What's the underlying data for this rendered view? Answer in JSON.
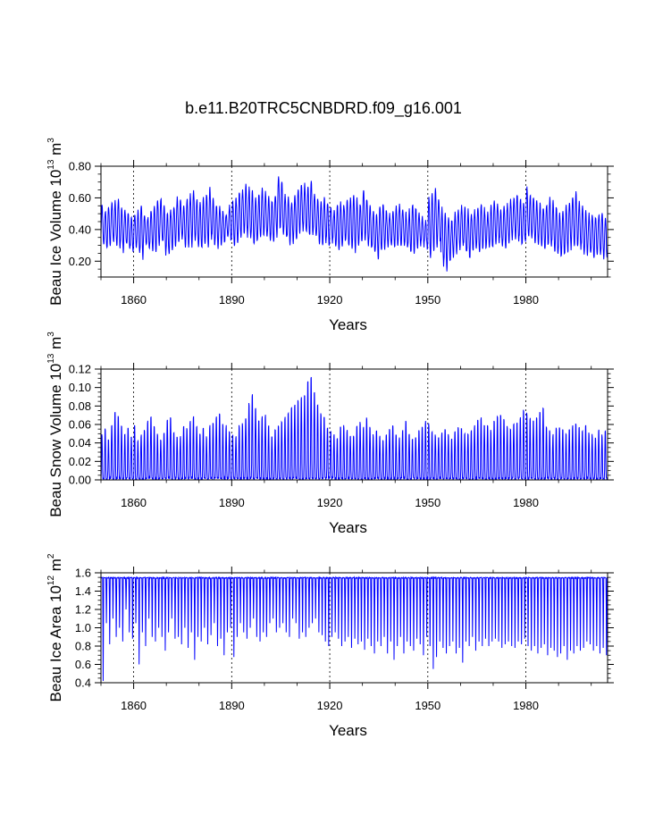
{
  "title": "b.e11.B20TRC5CNBDRD.f09_g16.001",
  "chart_data": [
    {
      "type": "line",
      "id": "ice-volume",
      "ylabel": {
        "main": "Beau Ice Volume 10",
        "exp": "13",
        "unit": " m",
        "unit_exp": "3"
      },
      "xlabel": "Years",
      "xlim": [
        1850,
        2005
      ],
      "ylim": [
        0.1,
        0.8
      ],
      "x_ticks": [
        1860,
        1890,
        1920,
        1950,
        1980
      ],
      "x_tick_labels": [
        "1860",
        "1890",
        "1920",
        "1950",
        "1980"
      ],
      "y_ticks": [
        0.2,
        0.4,
        0.6,
        0.8
      ],
      "y_tick_labels": [
        "0.20",
        "0.40",
        "0.60",
        "0.80"
      ],
      "y_minor_step": 0.05,
      "x_minor_step": 10,
      "grid_x": "dashed vertical lines at major ticks",
      "series": [
        {
          "name": "Beau Ice Volume",
          "color": "#0000ff",
          "sampling": "monthly, Jan 1850 - Dec 2005",
          "annual_max": [
            0.55,
            0.52,
            0.54,
            0.57,
            0.58,
            0.6,
            0.54,
            0.52,
            0.5,
            0.48,
            0.5,
            0.52,
            0.55,
            0.5,
            0.48,
            0.52,
            0.55,
            0.58,
            0.6,
            0.55,
            0.5,
            0.52,
            0.55,
            0.6,
            0.58,
            0.55,
            0.6,
            0.62,
            0.65,
            0.6,
            0.58,
            0.6,
            0.63,
            0.66,
            0.6,
            0.56,
            0.54,
            0.52,
            0.5,
            0.55,
            0.58,
            0.6,
            0.63,
            0.65,
            0.68,
            0.66,
            0.64,
            0.6,
            0.62,
            0.65,
            0.63,
            0.6,
            0.58,
            0.62,
            0.74,
            0.7,
            0.62,
            0.6,
            0.58,
            0.62,
            0.66,
            0.68,
            0.69,
            0.67,
            0.7,
            0.64,
            0.6,
            0.58,
            0.6,
            0.57,
            0.55,
            0.52,
            0.55,
            0.57,
            0.56,
            0.58,
            0.6,
            0.62,
            0.59,
            0.56,
            0.65,
            0.6,
            0.55,
            0.52,
            0.5,
            0.54,
            0.56,
            0.52,
            0.5,
            0.52,
            0.54,
            0.56,
            0.53,
            0.5,
            0.52,
            0.56,
            0.54,
            0.5,
            0.48,
            0.46,
            0.6,
            0.63,
            0.65,
            0.6,
            0.54,
            0.5,
            0.48,
            0.46,
            0.5,
            0.52,
            0.55,
            0.54,
            0.52,
            0.5,
            0.52,
            0.54,
            0.56,
            0.53,
            0.5,
            0.55,
            0.58,
            0.56,
            0.52,
            0.55,
            0.56,
            0.58,
            0.6,
            0.62,
            0.6,
            0.57,
            0.66,
            0.62,
            0.6,
            0.58,
            0.56,
            0.54,
            0.56,
            0.6,
            0.58,
            0.55,
            0.5,
            0.52,
            0.55,
            0.58,
            0.6,
            0.63,
            0.58,
            0.55,
            0.52,
            0.5,
            0.5,
            0.48,
            0.5,
            0.5,
            0.48,
            0.5
          ],
          "annual_min": [
            0.3,
            0.28,
            0.3,
            0.32,
            0.3,
            0.28,
            0.26,
            0.3,
            0.28,
            0.25,
            0.28,
            0.26,
            0.22,
            0.3,
            0.28,
            0.27,
            0.26,
            0.3,
            0.32,
            0.25,
            0.24,
            0.28,
            0.3,
            0.32,
            0.34,
            0.3,
            0.28,
            0.3,
            0.32,
            0.3,
            0.28,
            0.3,
            0.3,
            0.34,
            0.3,
            0.28,
            0.3,
            0.32,
            0.35,
            0.33,
            0.3,
            0.32,
            0.35,
            0.38,
            0.36,
            0.34,
            0.3,
            0.32,
            0.34,
            0.36,
            0.35,
            0.33,
            0.32,
            0.36,
            0.4,
            0.38,
            0.35,
            0.3,
            0.32,
            0.34,
            0.38,
            0.4,
            0.38,
            0.36,
            0.38,
            0.35,
            0.32,
            0.3,
            0.32,
            0.3,
            0.32,
            0.3,
            0.28,
            0.3,
            0.32,
            0.3,
            0.28,
            0.26,
            0.3,
            0.32,
            0.34,
            0.3,
            0.28,
            0.25,
            0.22,
            0.26,
            0.28,
            0.3,
            0.3,
            0.28,
            0.3,
            0.3,
            0.3,
            0.28,
            0.25,
            0.26,
            0.28,
            0.3,
            0.3,
            0.28,
            0.22,
            0.26,
            0.3,
            0.32,
            0.18,
            0.15,
            0.2,
            0.22,
            0.25,
            0.28,
            0.3,
            0.25,
            0.22,
            0.26,
            0.28,
            0.25,
            0.27,
            0.28,
            0.3,
            0.28,
            0.3,
            0.32,
            0.3,
            0.28,
            0.32,
            0.34,
            0.35,
            0.33,
            0.3,
            0.32,
            0.35,
            0.34,
            0.32,
            0.3,
            0.3,
            0.28,
            0.3,
            0.3,
            0.26,
            0.24,
            0.22,
            0.24,
            0.26,
            0.28,
            0.3,
            0.3,
            0.28,
            0.25,
            0.24,
            0.24,
            0.22,
            0.24,
            0.25,
            0.22,
            0.21,
            0.24
          ]
        }
      ]
    },
    {
      "type": "line",
      "id": "snow-volume",
      "ylabel": {
        "main": "Beau Snow Volume 10",
        "exp": "13",
        "unit": " m",
        "unit_exp": "3"
      },
      "xlabel": "Years",
      "xlim": [
        1850,
        2005
      ],
      "ylim": [
        0.0,
        0.12
      ],
      "x_ticks": [
        1860,
        1890,
        1920,
        1950,
        1980
      ],
      "x_tick_labels": [
        "1860",
        "1890",
        "1920",
        "1950",
        "1980"
      ],
      "y_ticks": [
        0.0,
        0.02,
        0.04,
        0.06,
        0.08,
        0.1,
        0.12
      ],
      "y_tick_labels": [
        "0.00",
        "0.02",
        "0.04",
        "0.06",
        "0.08",
        "0.10",
        "0.12"
      ],
      "y_minor_step": 0.005,
      "x_minor_step": 10,
      "grid_x": "dashed vertical lines at major ticks",
      "series": [
        {
          "name": "Beau Snow Volume",
          "color": "#0000ff",
          "sampling": "monthly, Jan 1850 - Dec 2005",
          "annual_max": [
            0.05,
            0.058,
            0.045,
            0.062,
            0.075,
            0.072,
            0.06,
            0.05,
            0.058,
            0.048,
            0.062,
            0.045,
            0.05,
            0.055,
            0.065,
            0.07,
            0.06,
            0.05,
            0.045,
            0.052,
            0.068,
            0.07,
            0.055,
            0.05,
            0.048,
            0.06,
            0.058,
            0.065,
            0.07,
            0.06,
            0.052,
            0.058,
            0.048,
            0.06,
            0.065,
            0.07,
            0.075,
            0.062,
            0.06,
            0.055,
            0.05,
            0.048,
            0.06,
            0.062,
            0.07,
            0.085,
            0.095,
            0.08,
            0.065,
            0.07,
            0.072,
            0.06,
            0.05,
            0.055,
            0.06,
            0.065,
            0.07,
            0.075,
            0.08,
            0.085,
            0.09,
            0.092,
            0.095,
            0.11,
            0.115,
            0.1,
            0.085,
            0.075,
            0.07,
            0.06,
            0.055,
            0.05,
            0.045,
            0.058,
            0.06,
            0.055,
            0.05,
            0.048,
            0.06,
            0.065,
            0.058,
            0.07,
            0.06,
            0.05,
            0.055,
            0.048,
            0.045,
            0.05,
            0.058,
            0.062,
            0.05,
            0.048,
            0.055,
            0.065,
            0.05,
            0.045,
            0.048,
            0.055,
            0.06,
            0.065,
            0.062,
            0.055,
            0.05,
            0.048,
            0.052,
            0.058,
            0.05,
            0.045,
            0.055,
            0.06,
            0.058,
            0.052,
            0.05,
            0.055,
            0.06,
            0.068,
            0.07,
            0.062,
            0.06,
            0.055,
            0.065,
            0.07,
            0.072,
            0.068,
            0.06,
            0.058,
            0.062,
            0.065,
            0.07,
            0.078,
            0.075,
            0.068,
            0.065,
            0.07,
            0.075,
            0.08,
            0.06,
            0.055,
            0.05,
            0.058,
            0.06,
            0.055,
            0.05,
            0.055,
            0.06,
            0.062,
            0.058,
            0.055,
            0.06,
            0.052,
            0.05,
            0.048,
            0.055,
            0.05,
            0.055,
            0.055
          ]
        }
      ]
    },
    {
      "type": "line",
      "id": "ice-area",
      "ylabel": {
        "main": "Beau Ice Area 10",
        "exp": "12",
        "unit": " m",
        "unit_exp": "2"
      },
      "xlabel": "Years",
      "xlim": [
        1850,
        2005
      ],
      "ylim": [
        0.4,
        1.6
      ],
      "x_ticks": [
        1860,
        1890,
        1920,
        1950,
        1980
      ],
      "x_tick_labels": [
        "1860",
        "1890",
        "1920",
        "1950",
        "1980"
      ],
      "y_ticks": [
        0.4,
        0.6,
        0.8,
        1.0,
        1.2,
        1.4,
        1.6
      ],
      "y_tick_labels": [
        "0.4",
        "0.6",
        "0.8",
        "1.0",
        "1.2",
        "1.4",
        "1.6"
      ],
      "y_minor_step": 0.05,
      "x_minor_step": 10,
      "grid_x": "dashed vertical lines at major ticks",
      "series": [
        {
          "name": "Beau Ice Area",
          "color": "#0000ff",
          "sampling": "monthly, Jan 1850 - Dec 2005",
          "annual_max": 1.55,
          "annual_min": [
            0.42,
            1.05,
            0.82,
            1.1,
            0.9,
            1.0,
            0.85,
            1.2,
            0.95,
            0.88,
            1.05,
            0.6,
            0.95,
            0.8,
            1.1,
            0.9,
            0.85,
            1.0,
            0.9,
            0.75,
            0.95,
            1.1,
            0.88,
            0.9,
            0.82,
            1.0,
            0.78,
            0.95,
            0.65,
            0.9,
            0.85,
            1.0,
            0.82,
            0.92,
            1.05,
            0.8,
            0.88,
            0.7,
            0.95,
            1.0,
            0.68,
            0.9,
            1.05,
            0.95,
            0.88,
            1.0,
            1.1,
            0.9,
            0.85,
            0.95,
            0.9,
            1.05,
            1.1,
            0.95,
            1.0,
            1.05,
            0.95,
            0.9,
            1.1,
            1.05,
            0.88,
            0.95,
            0.9,
            1.0,
            1.05,
            1.1,
            0.95,
            0.92,
            0.85,
            0.8,
            0.9,
            0.95,
            0.88,
            0.8,
            0.85,
            0.9,
            0.78,
            0.88,
            0.82,
            0.85,
            0.76,
            0.88,
            0.8,
            0.72,
            0.85,
            0.8,
            0.9,
            0.72,
            0.85,
            0.65,
            0.8,
            0.9,
            0.72,
            0.85,
            0.8,
            0.75,
            0.88,
            0.82,
            0.7,
            0.9,
            0.8,
            0.55,
            0.68,
            0.85,
            0.78,
            0.72,
            0.8,
            0.85,
            0.72,
            0.78,
            0.62,
            0.85,
            0.8,
            0.9,
            0.75,
            0.85,
            0.8,
            0.88,
            0.8,
            0.85,
            0.88,
            0.85,
            0.78,
            0.82,
            0.85,
            0.8,
            0.78,
            0.85,
            0.82,
            0.88,
            0.8,
            0.75,
            0.8,
            0.72,
            0.78,
            0.82,
            0.7,
            0.78,
            0.75,
            0.68,
            0.72,
            0.8,
            0.65,
            0.75,
            0.72,
            0.8,
            0.75,
            0.78,
            0.85,
            0.82,
            0.75,
            0.8,
            0.72,
            0.78,
            0.7,
            0.78
          ]
        }
      ]
    }
  ]
}
